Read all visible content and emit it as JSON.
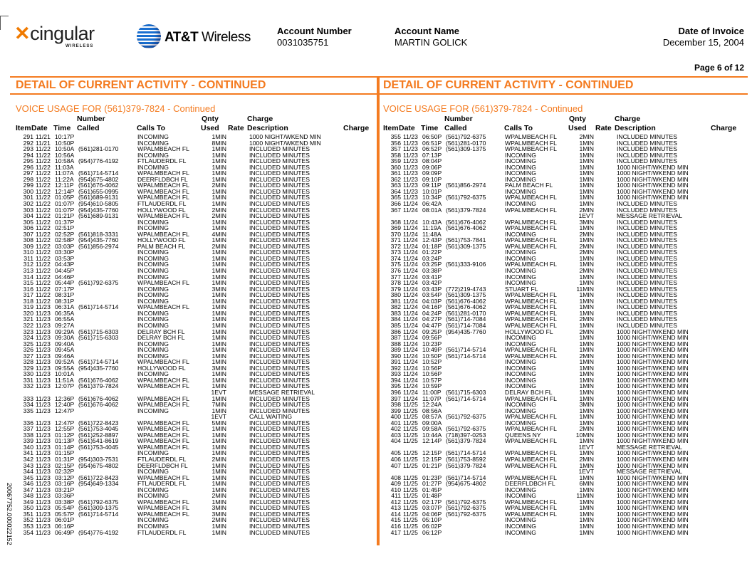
{
  "header": {
    "brand1": "cingular",
    "brand1_sub": "WIRELESS",
    "brand2_bold": "AT&T",
    "brand2": "Wireless",
    "account_number_label": "Account Number",
    "account_number": "0031035751",
    "account_name_label": "Account Name",
    "account_name": "MARTIN GOLICK",
    "invoice_date_label": "Date of Invoice",
    "invoice_date": "December 15, 2004",
    "page": "Page 6 of 12"
  },
  "section_title": "DETAIL OF CURRENT ACTIVITY - CONTINUED",
  "subsection_title": "VOICE USAGE FOR (561)379-7824 - Continued",
  "columns": {
    "number_top": "Number",
    "qnty_top": "Qnty",
    "charge_top": "Charge",
    "item": "Item",
    "date": "Date",
    "time": "Time",
    "called": "Called",
    "calls_to": "Calls To",
    "used": "Used",
    "rate": "Rate",
    "description": "Description",
    "charge": "Charge"
  },
  "side_code": "20067752.000022152",
  "colors": {
    "accent": "#f47b20"
  },
  "left_rows": [
    [
      "291",
      "11/21",
      "10:17P",
      "",
      "INCOMING",
      "1MIN",
      "1000 NIGHT/WKEND MIN"
    ],
    [
      "292",
      "11/21",
      "10:50P",
      "",
      "INCOMING",
      "8MIN",
      "1000 NIGHT/WKEND MIN"
    ],
    [
      "293",
      "11/22",
      "10:50A",
      "(561)281-0170",
      "WPALMBEACH FL",
      "1MIN",
      "INCLUDED MINUTES"
    ],
    [
      "294",
      "11/22",
      "10:56A",
      "",
      "INCOMING",
      "1MIN",
      "INCLUDED MINUTES"
    ],
    [
      "295",
      "11/22",
      "10:58A",
      "(954)776-4192",
      "FTLAUDERDL FL",
      "1MIN",
      "INCLUDED MINUTES"
    ],
    [
      "296",
      "11/22",
      "11:03A",
      "",
      "INCOMING",
      "1MIN",
      "INCLUDED MINUTES"
    ],
    [
      "297",
      "11/22",
      "11:07A",
      "(561)714-5714",
      "WPALMBEACH FL",
      "1MIN",
      "INCLUDED MINUTES"
    ],
    [
      "298",
      "11/22",
      "11:22A",
      "(954)675-4802",
      "DEERFLDBCH FL",
      "1MIN",
      "INCLUDED MINUTES"
    ],
    [
      "299",
      "11/22",
      "12:11P",
      "(561)676-4062",
      "WPALMBEACH FL",
      "2MIN",
      "INCLUDED MINUTES"
    ],
    [
      "300",
      "11/22",
      "12:14P",
      "(561)655-0995",
      "WPALMBEACH FL",
      "1MIN",
      "INCLUDED MINUTES"
    ],
    [
      "301",
      "11/22",
      "01:05P",
      "(561)689-9131",
      "WPALMBEACH FL",
      "1MIN",
      "INCLUDED MINUTES"
    ],
    [
      "302",
      "11/22",
      "01:07P",
      "(954)610-5805",
      "FTLAUDERDL FL",
      "1MIN",
      "INCLUDED MINUTES"
    ],
    [
      "303",
      "11/22",
      "01:07P",
      "(954)435-7760",
      "HOLLYWOOD FL",
      "2MIN",
      "INCLUDED MINUTES"
    ],
    [
      "304",
      "11/22",
      "01:21P",
      "(561)689-9131",
      "WPALMBEACH FL",
      "2MIN",
      "INCLUDED MINUTES"
    ],
    [
      "305",
      "11/22",
      "01:37P",
      "",
      "INCOMING",
      "1MIN",
      "INCLUDED MINUTES"
    ],
    [
      "306",
      "11/22",
      "02:51P",
      "",
      "INCOMING",
      "1MIN",
      "INCLUDED MINUTES"
    ],
    [
      "307",
      "11/22",
      "02:52P",
      "(561)818-3331",
      "WPALMBEACH FL",
      "4MIN",
      "INCLUDED MINUTES"
    ],
    [
      "308",
      "11/22",
      "02:58P",
      "(954)435-7760",
      "HOLLYWOOD FL",
      "1MIN",
      "INCLUDED MINUTES"
    ],
    [
      "309",
      "11/22",
      "03:03P",
      "(561)856-2974",
      "PALM BEACH FL",
      "2MIN",
      "INCLUDED MINUTES"
    ],
    [
      "310",
      "11/22",
      "03:30P",
      "",
      "INCOMING",
      "1MIN",
      "INCLUDED MINUTES"
    ],
    [
      "311",
      "11/22",
      "03:53P",
      "",
      "INCOMING",
      "1MIN",
      "INCLUDED MINUTES"
    ],
    [
      "312",
      "11/22",
      "04:43P",
      "",
      "INCOMING",
      "1MIN",
      "INCLUDED MINUTES"
    ],
    [
      "313",
      "11/22",
      "04:45P",
      "",
      "INCOMING",
      "1MIN",
      "INCLUDED MINUTES"
    ],
    [
      "314",
      "11/22",
      "04:46P",
      "",
      "INCOMING",
      "1MIN",
      "INCLUDED MINUTES"
    ],
    [
      "315",
      "11/22",
      "05:44P",
      "(561)792-6375",
      "WPALMBEACH FL",
      "1MIN",
      "INCLUDED MINUTES"
    ],
    [
      "316",
      "11/22",
      "07:17P",
      "",
      "INCOMING",
      "3MIN",
      "INCLUDED MINUTES"
    ],
    [
      "317",
      "11/22",
      "08:31P",
      "",
      "INCOMING",
      "1MIN",
      "INCLUDED MINUTES"
    ],
    [
      "318",
      "11/22",
      "08:31P",
      "",
      "INCOMING",
      "1MIN",
      "INCLUDED MINUTES"
    ],
    [
      "319",
      "11/23",
      "06:31A",
      "(561)714-5714",
      "WPALMBEACH FL",
      "1MIN",
      "INCLUDED MINUTES"
    ],
    [
      "320",
      "11/23",
      "06:35A",
      "",
      "INCOMING",
      "1MIN",
      "INCLUDED MINUTES"
    ],
    [
      "321",
      "11/23",
      "06:55A",
      "",
      "INCOMING",
      "1MIN",
      "INCLUDED MINUTES"
    ],
    [
      "322",
      "11/23",
      "09:27A",
      "",
      "INCOMING",
      "1MIN",
      "INCLUDED MINUTES"
    ],
    [
      "323",
      "11/23",
      "09:29A",
      "(561)715-6303",
      "DELRAY BCH FL",
      "1MIN",
      "INCLUDED MINUTES"
    ],
    [
      "324",
      "11/23",
      "09:30A",
      "(561)715-6303",
      "DELRAY BCH FL",
      "1MIN",
      "INCLUDED MINUTES"
    ],
    [
      "325",
      "11/23",
      "09:40A",
      "",
      "INCOMING",
      "1MIN",
      "INCLUDED MINUTES"
    ],
    [
      "326",
      "11/23",
      "09:45A",
      "",
      "INCOMING",
      "1MIN",
      "INCLUDED MINUTES"
    ],
    [
      "327",
      "11/23",
      "09:46A",
      "",
      "INCOMING",
      "1MIN",
      "INCLUDED MINUTES"
    ],
    [
      "328",
      "11/23",
      "09:52A",
      "(561)714-5714",
      "WPALMBEACH FL",
      "1MIN",
      "INCLUDED MINUTES"
    ],
    [
      "329",
      "11/23",
      "09:55A",
      "(954)435-7760",
      "HOLLYWOOD FL",
      "3MIN",
      "INCLUDED MINUTES"
    ],
    [
      "330",
      "11/23",
      "10:01A",
      "",
      "INCOMING",
      "1MIN",
      "INCLUDED MINUTES"
    ],
    [
      "331",
      "11/23",
      "11:51A",
      "(561)676-4062",
      "WPALMBEACH FL",
      "1MIN",
      "INCLUDED MINUTES"
    ],
    [
      "332",
      "11/23",
      "12:07P",
      "(561)379-7824",
      "WPALMBEACH FL",
      "1MIN",
      "INCLUDED MINUTES"
    ],
    [
      "",
      "",
      "",
      "",
      "",
      "1EVT",
      "MESSAGE RETRIEVAL"
    ],
    [
      "333",
      "11/23",
      "12:36P",
      "(561)676-4062",
      "WPALMBEACH FL",
      "1MIN",
      "INCLUDED MINUTES"
    ],
    [
      "334",
      "11/23",
      "12:40P",
      "(561)676-4062",
      "WPALMBEACH FL",
      "7MIN",
      "INCLUDED MINUTES"
    ],
    [
      "335",
      "11/23",
      "12:47P",
      "",
      "INCOMING",
      "1MIN",
      "INCLUDED MINUTES"
    ],
    [
      "",
      "",
      "",
      "",
      "",
      "1EVT",
      "CALL WAITING"
    ],
    [
      "336",
      "11/23",
      "12:47P",
      "(561)722-8423",
      "WPALMBEACH FL",
      "5MIN",
      "INCLUDED MINUTES"
    ],
    [
      "337",
      "11/23",
      "12:55P",
      "(561)753-4045",
      "WPALMBEACH FL",
      "1MIN",
      "INCLUDED MINUTES"
    ],
    [
      "338",
      "11/23",
      "01:12P",
      "(561)252-8897",
      "WPALMBEACH FL",
      "1MIN",
      "INCLUDED MINUTES"
    ],
    [
      "339",
      "11/23",
      "01:13P",
      "(561)541-8619",
      "WPALMBEACH FL",
      "1MIN",
      "INCLUDED MINUTES"
    ],
    [
      "340",
      "11/23",
      "01:14P",
      "(561)753-4045",
      "WPALMBEACH FL",
      "1MIN",
      "INCLUDED MINUTES"
    ],
    [
      "341",
      "11/23",
      "01:15P",
      "",
      "INCOMING",
      "1MIN",
      "INCLUDED MINUTES"
    ],
    [
      "342",
      "11/23",
      "01:31P",
      "(954)303-7531",
      "FTLAUDERDL FL",
      "2MIN",
      "INCLUDED MINUTES"
    ],
    [
      "343",
      "11/23",
      "02:15P",
      "(954)675-4802",
      "DEERFLDBCH FL",
      "1MIN",
      "INCLUDED MINUTES"
    ],
    [
      "344",
      "11/23",
      "02:32P",
      "",
      "INCOMING",
      "1MIN",
      "INCLUDED MINUTES"
    ],
    [
      "345",
      "11/23",
      "03:12P",
      "(561)722-8423",
      "WPALMBEACH FL",
      "1MIN",
      "INCLUDED MINUTES"
    ],
    [
      "346",
      "11/23",
      "03:16P",
      "(954)649-1334",
      "FTLAUDERDL FL",
      "1MIN",
      "INCLUDED MINUTES"
    ],
    [
      "347",
      "11/23",
      "03:21P",
      "",
      "INCOMING",
      "1MIN",
      "INCLUDED MINUTES"
    ],
    [
      "348",
      "11/23",
      "03:36P",
      "",
      "INCOMING",
      "2MIN",
      "INCLUDED MINUTES"
    ],
    [
      "349",
      "11/23",
      "03:38P",
      "(561)792-6375",
      "WPALMBEACH FL",
      "1MIN",
      "INCLUDED MINUTES"
    ],
    [
      "350",
      "11/23",
      "05:54P",
      "(561)309-1375",
      "WPALMBEACH FL",
      "3MIN",
      "INCLUDED MINUTES"
    ],
    [
      "351",
      "11/23",
      "05:57P",
      "(561)714-5714",
      "WPALMBEACH FL",
      "3MIN",
      "INCLUDED MINUTES"
    ],
    [
      "352",
      "11/23",
      "06:01P",
      "",
      "INCOMING",
      "2MIN",
      "INCLUDED MINUTES"
    ],
    [
      "353",
      "11/23",
      "06:16P",
      "",
      "INCOMING",
      "1MIN",
      "INCLUDED MINUTES"
    ],
    [
      "354",
      "11/23",
      "06:49P",
      "(954)776-4192",
      "FTLAUDERDL FL",
      "1MIN",
      "INCLUDED MINUTES"
    ]
  ],
  "right_rows": [
    [
      "355",
      "11/23",
      "06:50P",
      "(561)792-6375",
      "WPALMBEACH FL",
      "2MIN",
      "INCLUDED MINUTES"
    ],
    [
      "356",
      "11/23",
      "06:51P",
      "(561)281-0170",
      "WPALMBEACH FL",
      "1MIN",
      "INCLUDED MINUTES"
    ],
    [
      "357",
      "11/23",
      "06:52P",
      "(561)309-1375",
      "WPALMBEACH FL",
      "1MIN",
      "INCLUDED MINUTES"
    ],
    [
      "358",
      "11/23",
      "07:13P",
      "",
      "INCOMING",
      "1MIN",
      "INCLUDED MINUTES"
    ],
    [
      "359",
      "11/23",
      "08:04P",
      "",
      "INCOMING",
      "1MIN",
      "INCLUDED MINUTES"
    ],
    [
      "360",
      "11/23",
      "09:06P",
      "",
      "INCOMING",
      "1MIN",
      "1000 NIGHT/WKEND MIN"
    ],
    [
      "361",
      "11/23",
      "09:09P",
      "",
      "INCOMING",
      "1MIN",
      "1000 NIGHT/WKEND MIN"
    ],
    [
      "362",
      "11/23",
      "09:10P",
      "",
      "INCOMING",
      "1MIN",
      "1000 NIGHT/WKEND MIN"
    ],
    [
      "363",
      "11/23",
      "09:11P",
      "(561)856-2974",
      "PALM BEACH FL",
      "1MIN",
      "1000 NIGHT/WKEND MIN"
    ],
    [
      "364",
      "11/23",
      "10:01P",
      "",
      "INCOMING",
      "1MIN",
      "1000 NIGHT/WKEND MIN"
    ],
    [
      "365",
      "11/23",
      "10:34P",
      "(561)792-6375",
      "WPALMBEACH FL",
      "1MIN",
      "1000 NIGHT/WKEND MIN"
    ],
    [
      "366",
      "11/24",
      "06:42A",
      "",
      "INCOMING",
      "1MIN",
      "INCLUDED MINUTES"
    ],
    [
      "367",
      "11/24",
      "08:01A",
      "(561)379-7824",
      "WPALMBEACH FL",
      "2MIN",
      "INCLUDED MINUTES"
    ],
    [
      "",
      "",
      "",
      "",
      "",
      "1EVT",
      "MESSAGE RETRIEVAL"
    ],
    [
      "368",
      "11/24",
      "10:43A",
      "(561)676-4062",
      "WPALMBEACH FL",
      "3MIN",
      "INCLUDED MINUTES"
    ],
    [
      "369",
      "11/24",
      "11:19A",
      "(561)676-4062",
      "WPALMBEACH FL",
      "1MIN",
      "INCLUDED MINUTES"
    ],
    [
      "370",
      "11/24",
      "11:48A",
      "",
      "INCOMING",
      "2MIN",
      "INCLUDED MINUTES"
    ],
    [
      "371",
      "11/24",
      "12:43P",
      "(561)753-7841",
      "WPALMBEACH FL",
      "1MIN",
      "INCLUDED MINUTES"
    ],
    [
      "372",
      "11/24",
      "01:18P",
      "(561)309-1375",
      "WPALMBEACH FL",
      "2MIN",
      "INCLUDED MINUTES"
    ],
    [
      "373",
      "11/24",
      "01:22P",
      "",
      "INCOMING",
      "2MIN",
      "INCLUDED MINUTES"
    ],
    [
      "374",
      "11/24",
      "03:24P",
      "",
      "INCOMING",
      "1MIN",
      "INCLUDED MINUTES"
    ],
    [
      "375",
      "11/24",
      "03:25P",
      "(561)333-9106",
      "WPALMBEACH FL",
      "1MIN",
      "INCLUDED MINUTES"
    ],
    [
      "376",
      "11/24",
      "03:38P",
      "",
      "INCOMING",
      "2MIN",
      "INCLUDED MINUTES"
    ],
    [
      "377",
      "11/24",
      "03:41P",
      "",
      "INCOMING",
      "1MIN",
      "INCLUDED MINUTES"
    ],
    [
      "378",
      "11/24",
      "03:42P",
      "",
      "INCOMING",
      "1MIN",
      "INCLUDED MINUTES"
    ],
    [
      "379",
      "11/24",
      "03:43P",
      "(772)219-4743",
      "STUART FL",
      "11MIN",
      "INCLUDED MINUTES"
    ],
    [
      "380",
      "11/24",
      "03:54P",
      "(561)309-1375",
      "WPALMBEACH FL",
      "1MIN",
      "INCLUDED MINUTES"
    ],
    [
      "381",
      "11/24",
      "04:03P",
      "(561)676-4062",
      "WPALMBEACH FL",
      "1MIN",
      "INCLUDED MINUTES"
    ],
    [
      "382",
      "11/24",
      "04:16P",
      "(561)676-4062",
      "WPALMBEACH FL",
      "1MIN",
      "INCLUDED MINUTES"
    ],
    [
      "383",
      "11/24",
      "04:24P",
      "(561)281-0170",
      "WPALMBEACH FL",
      "1MIN",
      "INCLUDED MINUTES"
    ],
    [
      "384",
      "11/24",
      "04:27P",
      "(561)714-7084",
      "WPALMBEACH FL",
      "2MIN",
      "INCLUDED MINUTES"
    ],
    [
      "385",
      "11/24",
      "04:47P",
      "(561)714-7084",
      "WPALMBEACH FL",
      "1MIN",
      "INCLUDED MINUTES"
    ],
    [
      "386",
      "11/24",
      "09:25P",
      "(954)435-7760",
      "HOLLYWOOD FL",
      "2MIN",
      "1000 NIGHT/WKEND MIN"
    ],
    [
      "387",
      "11/24",
      "09:56P",
      "",
      "INCOMING",
      "1MIN",
      "1000 NIGHT/WKEND MIN"
    ],
    [
      "388",
      "11/24",
      "10:23P",
      "",
      "INCOMING",
      "1MIN",
      "1000 NIGHT/WKEND MIN"
    ],
    [
      "389",
      "11/24",
      "10:49P",
      "(561)714-5714",
      "WPALMBEACH FL",
      "1MIN",
      "1000 NIGHT/WKEND MIN"
    ],
    [
      "390",
      "11/24",
      "10:50P",
      "(561)714-5714",
      "WPALMBEACH FL",
      "2MIN",
      "1000 NIGHT/WKEND MIN"
    ],
    [
      "391",
      "11/24",
      "10:52P",
      "",
      "INCOMING",
      "1MIN",
      "1000 NIGHT/WKEND MIN"
    ],
    [
      "392",
      "11/24",
      "10:56P",
      "",
      "INCOMING",
      "1MIN",
      "1000 NIGHT/WKEND MIN"
    ],
    [
      "393",
      "11/24",
      "10:56P",
      "",
      "INCOMING",
      "1MIN",
      "1000 NIGHT/WKEND MIN"
    ],
    [
      "394",
      "11/24",
      "10:57P",
      "",
      "INCOMING",
      "1MIN",
      "1000 NIGHT/WKEND MIN"
    ],
    [
      "395",
      "11/24",
      "10:59P",
      "",
      "INCOMING",
      "1MIN",
      "1000 NIGHT/WKEND MIN"
    ],
    [
      "396",
      "11/24",
      "11:00P",
      "(561)715-6303",
      "DELRAY BCH FL",
      "1MIN",
      "1000 NIGHT/WKEND MIN"
    ],
    [
      "397",
      "11/24",
      "11:07P",
      "(561)714-5714",
      "WPALMBEACH FL",
      "1MIN",
      "1000 NIGHT/WKEND MIN"
    ],
    [
      "398",
      "11/25",
      "12:24A",
      "",
      "INCOMING",
      "3MIN",
      "1000 NIGHT/WKEND MIN"
    ],
    [
      "399",
      "11/25",
      "08:56A",
      "",
      "INCOMING",
      "1MIN",
      "1000 NIGHT/WKEND MIN"
    ],
    [
      "400",
      "11/25",
      "08:57A",
      "(561)792-6375",
      "WPALMBEACH FL",
      "1MIN",
      "1000 NIGHT/WKEND MIN"
    ],
    [
      "401",
      "11/25",
      "09:00A",
      "",
      "INCOMING",
      "1MIN",
      "1000 NIGHT/WKEND MIN"
    ],
    [
      "402",
      "11/25",
      "09:58A",
      "(561)792-6375",
      "WPALMBEACH FL",
      "2MIN",
      "1000 NIGHT/WKEND MIN"
    ],
    [
      "403",
      "11/25",
      "10:44A",
      "(718)397-0253",
      "QUEENS NY",
      "10MIN",
      "1000 NIGHT/WKEND MIN"
    ],
    [
      "404",
      "11/25",
      "12:14P",
      "(561)379-7824",
      "WPALMBEACH FL",
      "1MIN",
      "1000 NIGHT/WKEND MIN"
    ],
    [
      "",
      "",
      "",
      "",
      "",
      "1EVT",
      "MESSAGE RETRIEVAL"
    ],
    [
      "405",
      "11/25",
      "12:15P",
      "(561)714-5714",
      "WPALMBEACH FL",
      "1MIN",
      "1000 NIGHT/WKEND MIN"
    ],
    [
      "406",
      "11/25",
      "12:15P",
      "(561)753-8592",
      "WPALMBEACH FL",
      "2MIN",
      "1000 NIGHT/WKEND MIN"
    ],
    [
      "407",
      "11/25",
      "01:21P",
      "(561)379-7824",
      "WPALMBEACH FL",
      "1MIN",
      "1000 NIGHT/WKEND MIN"
    ],
    [
      "",
      "",
      "",
      "",
      "",
      "1EVT",
      "MESSAGE RETRIEVAL"
    ],
    [
      "408",
      "11/25",
      "01:23P",
      "(561)714-5714",
      "WPALMBEACH FL",
      "1MIN",
      "1000 NIGHT/WKEND MIN"
    ],
    [
      "409",
      "11/25",
      "01:27P",
      "(954)675-4802",
      "DEERFLDBCH FL",
      "6MIN",
      "1000 NIGHT/WKEND MIN"
    ],
    [
      "410",
      "11/25",
      "01:45P",
      "",
      "INCOMING",
      "1MIN",
      "1000 NIGHT/WKEND MIN"
    ],
    [
      "411",
      "11/25",
      "01:48P",
      "",
      "INCOMING",
      "11MIN",
      "1000 NIGHT/WKEND MIN"
    ],
    [
      "412",
      "11/25",
      "02:17P",
      "(561)792-6375",
      "WPALMBEACH FL",
      "1MIN",
      "1000 NIGHT/WKEND MIN"
    ],
    [
      "413",
      "11/25",
      "03:07P",
      "(561)792-6375",
      "WPALMBEACH FL",
      "1MIN",
      "1000 NIGHT/WKEND MIN"
    ],
    [
      "414",
      "11/25",
      "04:06P",
      "(561)792-6375",
      "WPALMBEACH FL",
      "1MIN",
      "1000 NIGHT/WKEND MIN"
    ],
    [
      "415",
      "11/25",
      "05:10P",
      "",
      "INCOMING",
      "1MIN",
      "1000 NIGHT/WKEND MIN"
    ],
    [
      "416",
      "11/25",
      "06:02P",
      "",
      "INCOMING",
      "1MIN",
      "1000 NIGHT/WKEND MIN"
    ],
    [
      "417",
      "11/25",
      "06:12P",
      "",
      "INCOMING",
      "1MIN",
      "1000 NIGHT/WKEND MIN"
    ]
  ]
}
